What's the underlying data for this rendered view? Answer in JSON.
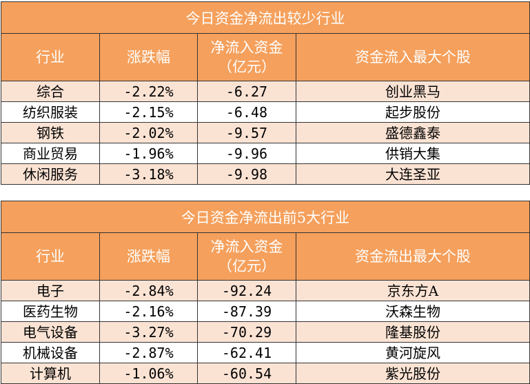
{
  "table1": {
    "title": "今日资金净流出较少行业",
    "headers": [
      "行业",
      "涨跌幅",
      "净流入资金\n（亿元）",
      "资金流入最大个股"
    ],
    "rows": [
      {
        "industry": "综合",
        "change": "-2.22%",
        "net_inflow": "-6.27",
        "top_stock": "创业黑马"
      },
      {
        "industry": "纺织服装",
        "change": "-2.15%",
        "net_inflow": "-6.48",
        "top_stock": "起步股份"
      },
      {
        "industry": "钢铁",
        "change": "-2.02%",
        "net_inflow": "-9.57",
        "top_stock": "盛德鑫泰"
      },
      {
        "industry": "商业贸易",
        "change": "-1.96%",
        "net_inflow": "-9.96",
        "top_stock": "供销大集"
      },
      {
        "industry": "休闲服务",
        "change": "-3.18%",
        "net_inflow": "-9.98",
        "top_stock": "大连圣亚"
      }
    ]
  },
  "table2": {
    "title": "今日资金净流出前5大行业",
    "headers": [
      "行业",
      "涨跌幅",
      "净流入资金\n（亿元）",
      "资金流出最大个股"
    ],
    "rows": [
      {
        "industry": "电子",
        "change": "-2.84%",
        "net_inflow": "-92.24",
        "top_stock": "京东方A"
      },
      {
        "industry": "医药生物",
        "change": "-2.16%",
        "net_inflow": "-87.39",
        "top_stock": "沃森生物"
      },
      {
        "industry": "电气设备",
        "change": "-3.27%",
        "net_inflow": "-70.29",
        "top_stock": "隆基股份"
      },
      {
        "industry": "机械设备",
        "change": "-2.87%",
        "net_inflow": "-62.41",
        "top_stock": "黄河旋风"
      },
      {
        "industry": "计算机",
        "change": "-1.06%",
        "net_inflow": "-60.54",
        "top_stock": "紫光股份"
      }
    ]
  },
  "colors": {
    "header_bg": "#f5a05c",
    "header_text": "#ffffff",
    "alt_row_bg": "#fbe3d4",
    "border": "#333333"
  }
}
